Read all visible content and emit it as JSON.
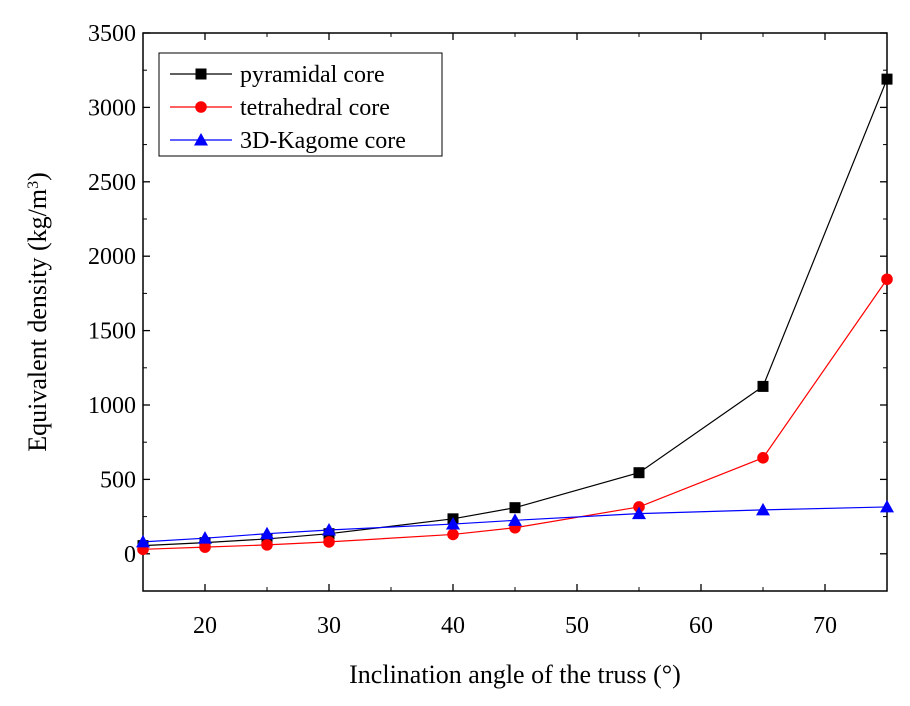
{
  "chart_data": {
    "type": "line",
    "title": "",
    "xlabel": "Inclination angle of the truss (°)",
    "ylabel_main": "Equivalent density (kg/m",
    "ylabel_sup": "3",
    "ylabel_close": ")",
    "xlim": [
      15,
      75
    ],
    "ylim": [
      -250,
      3500
    ],
    "x_ticks": [
      20,
      30,
      40,
      50,
      60,
      70
    ],
    "y_ticks": [
      0,
      500,
      1000,
      1500,
      2000,
      2500,
      3000,
      3500
    ],
    "x": [
      15,
      20,
      25,
      30,
      40,
      45,
      55,
      65,
      75
    ],
    "legend_position": "top-left",
    "series": [
      {
        "name": "pyramidal core",
        "marker": "square",
        "color": "#000000",
        "values": [
          55,
          75,
          100,
          135,
          235,
          310,
          545,
          1125,
          3190
        ]
      },
      {
        "name": "tetrahedral core",
        "marker": "circle",
        "color": "#ff0000",
        "values": [
          30,
          45,
          60,
          80,
          130,
          175,
          315,
          645,
          1845
        ]
      },
      {
        "name": "3D-Kagome core",
        "marker": "triangle",
        "color": "#0000ff",
        "values": [
          80,
          105,
          135,
          160,
          200,
          225,
          270,
          295,
          315
        ]
      }
    ]
  }
}
